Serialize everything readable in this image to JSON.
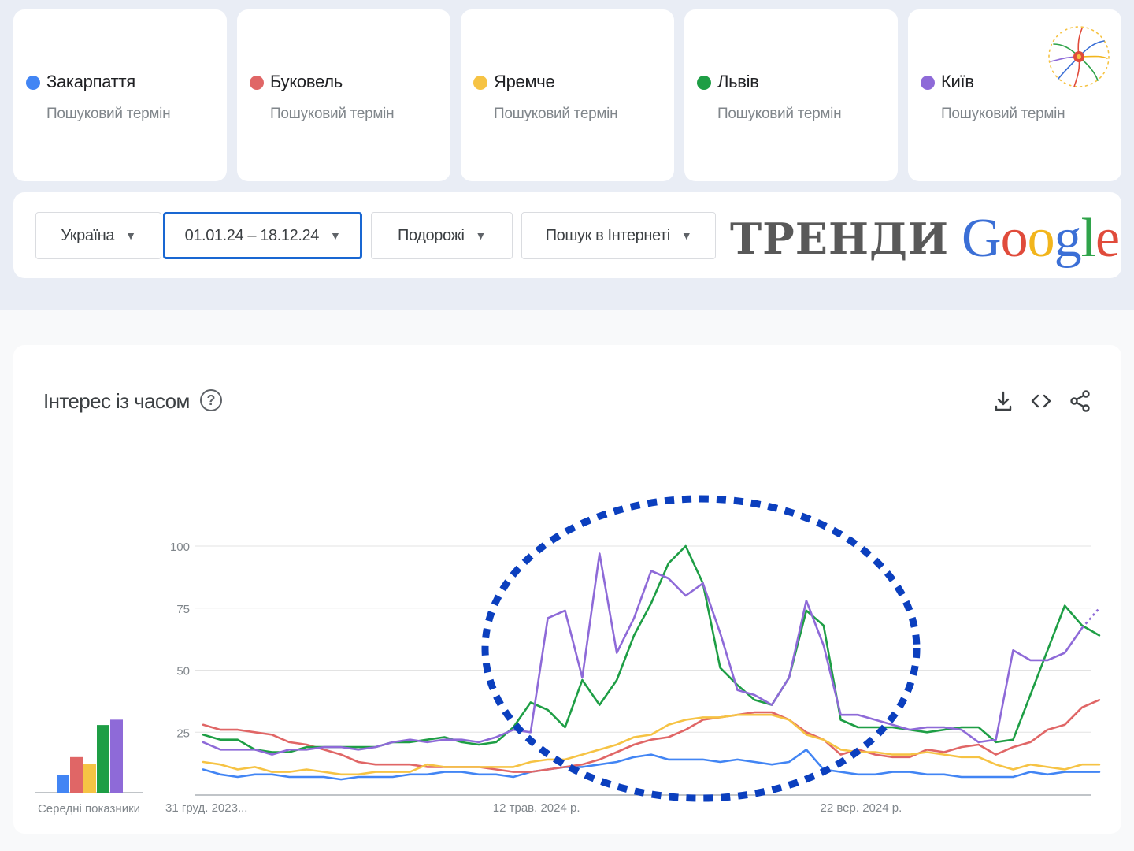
{
  "colors": {
    "blue": "#4285f4",
    "red": "#e06666",
    "yellow": "#f6c344",
    "green": "#1e9e45",
    "purple": "#8e6ad8",
    "highlight": "#0b3fbe",
    "active_border": "#1967d2"
  },
  "terms": [
    {
      "name": "Закарпаття",
      "subtitle": "Пошуковий термін",
      "color": "#4285f4"
    },
    {
      "name": "Буковель",
      "subtitle": "Пошуковий термін",
      "color": "#e06666"
    },
    {
      "name": "Яремче",
      "subtitle": "Пошуковий термін",
      "color": "#f6c344"
    },
    {
      "name": "Львів",
      "subtitle": "Пошуковий термін",
      "color": "#1e9e45"
    },
    {
      "name": "Київ",
      "subtitle": "Пошуковий термін",
      "color": "#8e6ad8"
    }
  ],
  "filters": {
    "region": "Україна",
    "date_range": "01.01.24 – 18.12.24",
    "category": "Подорожі",
    "search_type": "Пошук в Інтернеті"
  },
  "brand": {
    "word": "ТРЕНДИ",
    "google_letters": [
      {
        "ch": "G",
        "color": "#3b6fd6"
      },
      {
        "ch": "o",
        "color": "#e04b3b"
      },
      {
        "ch": "o",
        "color": "#f2b51c"
      },
      {
        "ch": "g",
        "color": "#3b6fd6"
      },
      {
        "ch": "l",
        "color": "#2fa34a"
      },
      {
        "ch": "e",
        "color": "#e04b3b"
      }
    ]
  },
  "chart_section": {
    "title": "Інтерес із часом",
    "help_icon": "help-circle-icon",
    "tools": [
      "download-icon",
      "embed-code-icon",
      "share-icon"
    ],
    "avg_label": "Середні показники"
  },
  "chart_data": {
    "type": "line",
    "ylim": [
      0,
      100
    ],
    "yticks": [
      25,
      50,
      75,
      100
    ],
    "x_tick_labels": [
      "31 груд. 2023...",
      "12 трав. 2024 р.",
      "22 вер. 2024 р."
    ],
    "x_tick_weeks": [
      0,
      19,
      38
    ],
    "weeks": 51,
    "grid": true,
    "averages": [
      {
        "name": "Закарпаття",
        "value": 10,
        "color": "#4285f4"
      },
      {
        "name": "Буковель",
        "value": 20,
        "color": "#e06666"
      },
      {
        "name": "Яремче",
        "value": 16,
        "color": "#f6c344"
      },
      {
        "name": "Львів",
        "value": 38,
        "color": "#1e9e45"
      },
      {
        "name": "Київ",
        "value": 41,
        "color": "#8e6ad8"
      }
    ],
    "series": [
      {
        "name": "Закарпаття",
        "color": "#4285f4",
        "values": [
          10,
          8,
          7,
          8,
          8,
          7,
          7,
          7,
          6,
          7,
          7,
          7,
          8,
          8,
          9,
          9,
          8,
          8,
          7,
          9,
          10,
          11,
          11,
          12,
          13,
          15,
          16,
          14,
          14,
          14,
          13,
          14,
          13,
          12,
          13,
          18,
          10,
          9,
          8,
          8,
          9,
          9,
          8,
          8,
          7,
          7,
          7,
          7,
          9,
          8,
          9,
          9,
          9
        ]
      },
      {
        "name": "Буковель",
        "color": "#e06666",
        "values": [
          28,
          26,
          26,
          25,
          24,
          21,
          20,
          18,
          16,
          13,
          12,
          12,
          12,
          11,
          11,
          11,
          11,
          10,
          9,
          9,
          10,
          11,
          12,
          14,
          17,
          20,
          22,
          23,
          26,
          30,
          31,
          32,
          33,
          33,
          30,
          25,
          22,
          16,
          18,
          16,
          15,
          15,
          18,
          17,
          19,
          20,
          16,
          19,
          21,
          26,
          28,
          35,
          38
        ]
      },
      {
        "name": "Яремче",
        "color": "#f6c344",
        "values": [
          13,
          12,
          10,
          11,
          9,
          9,
          10,
          9,
          8,
          8,
          9,
          9,
          9,
          12,
          11,
          11,
          11,
          11,
          11,
          13,
          14,
          14,
          16,
          18,
          20,
          23,
          24,
          28,
          30,
          31,
          31,
          32,
          32,
          32,
          30,
          24,
          22,
          18,
          17,
          17,
          16,
          16,
          17,
          16,
          15,
          15,
          12,
          10,
          12,
          11,
          10,
          12,
          12
        ]
      },
      {
        "name": "Львів",
        "color": "#1e9e45",
        "values": [
          24,
          22,
          22,
          18,
          17,
          17,
          19,
          19,
          19,
          19,
          19,
          21,
          21,
          22,
          23,
          21,
          20,
          21,
          27,
          37,
          34,
          27,
          46,
          36,
          46,
          64,
          77,
          93,
          100,
          85,
          51,
          44,
          38,
          36,
          47,
          74,
          68,
          30,
          27,
          27,
          27,
          26,
          25,
          26,
          27,
          27,
          21,
          22,
          40,
          58,
          76,
          68,
          64
        ]
      },
      {
        "name": "Київ",
        "color": "#8e6ad8",
        "values": [
          21,
          18,
          18,
          18,
          16,
          18,
          18,
          19,
          19,
          18,
          19,
          21,
          22,
          21,
          22,
          22,
          21,
          23,
          26,
          25,
          71,
          74,
          47,
          97,
          57,
          71,
          90,
          87,
          80,
          85,
          65,
          42,
          40,
          36,
          47,
          78,
          60,
          32,
          32,
          30,
          28,
          26,
          27,
          27,
          26,
          21,
          22,
          58,
          54,
          54,
          57,
          67,
          75
        ]
      }
    ],
    "projected_tail_series": "Київ"
  }
}
